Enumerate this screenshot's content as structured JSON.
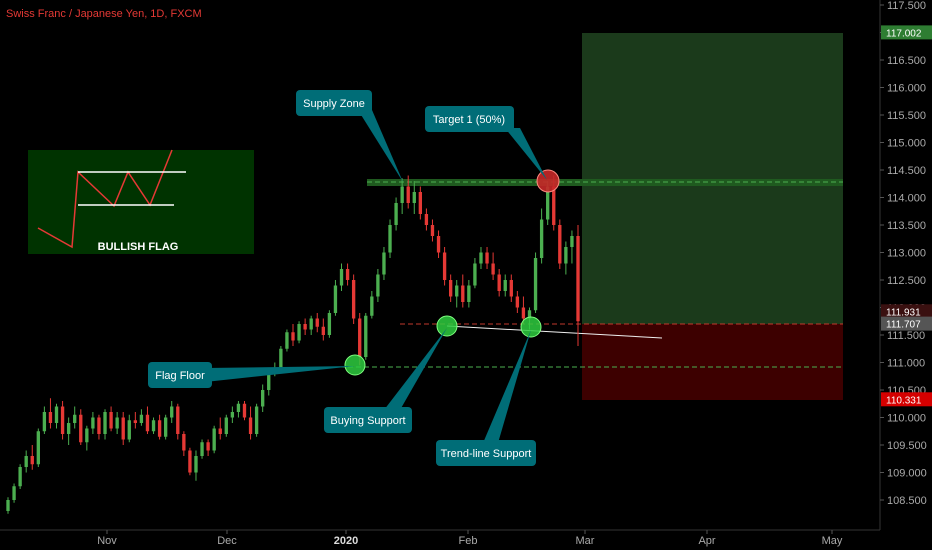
{
  "header": {
    "title": "Swiss Franc / Japanese Yen, 1D, FXCM"
  },
  "colors": {
    "background": "#000000",
    "bull": "#4caf50",
    "bear": "#e53935",
    "supply_line": "#2e7d32",
    "target_zone": "#1b3a1b",
    "stop_zone": "#3d0000",
    "callout": "#006d77",
    "marker_green": "#2ecc40",
    "marker_red": "#c62828"
  },
  "chart_data": {
    "type": "candlestick",
    "title": "Swiss Franc / Japanese Yen, 1D, FXCM",
    "x_ticks": [
      "Nov",
      "Dec",
      "2020",
      "Feb",
      "Mar",
      "Apr",
      "May"
    ],
    "y_ticks": [
      "117.500",
      "117.000",
      "116.500",
      "116.000",
      "115.500",
      "115.000",
      "114.500",
      "114.000",
      "113.500",
      "113.000",
      "112.500",
      "112.000",
      "111.500",
      "111.000",
      "110.500",
      "110.000",
      "109.500",
      "109.000",
      "108.500"
    ],
    "ylim": [
      108.1,
      117.6
    ],
    "price_labels": [
      {
        "value": 117.002,
        "text": "117.002",
        "color": "#2e7d32"
      },
      {
        "value": 111.931,
        "text": "111.931",
        "color": "#3a1010"
      },
      {
        "value": 111.707,
        "text": "111.707",
        "color": "#555555"
      },
      {
        "value": 110.331,
        "text": "110.331",
        "color": "#d50000"
      }
    ],
    "levels": {
      "supply_zone": 114.33,
      "buying_support": 111.92,
      "flag_floor": 110.95,
      "target_top": 117.002,
      "stop": 110.331,
      "entry": 111.931
    },
    "candles": [
      [
        108.3,
        108.55,
        108.25,
        108.5
      ],
      [
        108.5,
        108.8,
        108.45,
        108.75
      ],
      [
        108.75,
        109.15,
        108.7,
        109.1
      ],
      [
        109.1,
        109.4,
        109.0,
        109.3
      ],
      [
        109.3,
        109.5,
        109.05,
        109.15
      ],
      [
        109.15,
        109.8,
        109.1,
        109.75
      ],
      [
        109.75,
        110.2,
        109.7,
        110.1
      ],
      [
        110.1,
        110.35,
        109.8,
        109.9
      ],
      [
        109.9,
        110.25,
        109.8,
        110.2
      ],
      [
        110.2,
        110.3,
        109.6,
        109.7
      ],
      [
        109.7,
        110.0,
        109.5,
        109.9
      ],
      [
        109.9,
        110.2,
        109.8,
        110.05
      ],
      [
        110.05,
        110.15,
        109.5,
        109.55
      ],
      [
        109.55,
        109.85,
        109.4,
        109.8
      ],
      [
        109.8,
        110.1,
        109.7,
        110.0
      ],
      [
        110.0,
        110.05,
        109.6,
        109.7
      ],
      [
        109.7,
        110.15,
        109.6,
        110.1
      ],
      [
        110.1,
        110.2,
        109.75,
        109.8
      ],
      [
        109.8,
        110.1,
        109.7,
        110.0
      ],
      [
        110.0,
        110.1,
        109.5,
        109.6
      ],
      [
        109.6,
        110.05,
        109.55,
        109.95
      ],
      [
        109.95,
        110.1,
        109.8,
        109.9
      ],
      [
        109.9,
        110.15,
        109.85,
        110.05
      ],
      [
        110.05,
        110.2,
        109.7,
        109.75
      ],
      [
        109.75,
        110.0,
        109.7,
        109.95
      ],
      [
        109.95,
        110.05,
        109.6,
        109.65
      ],
      [
        109.65,
        110.05,
        109.6,
        110.0
      ],
      [
        110.0,
        110.3,
        109.9,
        110.2
      ],
      [
        110.2,
        110.25,
        109.6,
        109.7
      ],
      [
        109.7,
        109.75,
        109.3,
        109.4
      ],
      [
        109.4,
        109.45,
        108.95,
        109.0
      ],
      [
        109.0,
        109.4,
        108.85,
        109.3
      ],
      [
        109.3,
        109.6,
        109.25,
        109.55
      ],
      [
        109.55,
        109.6,
        109.3,
        109.4
      ],
      [
        109.4,
        109.85,
        109.35,
        109.8
      ],
      [
        109.8,
        110.0,
        109.6,
        109.7
      ],
      [
        109.7,
        110.05,
        109.65,
        110.0
      ],
      [
        110.0,
        110.2,
        109.9,
        110.1
      ],
      [
        110.1,
        110.3,
        110.0,
        110.25
      ],
      [
        110.25,
        110.3,
        109.95,
        110.0
      ],
      [
        110.0,
        110.2,
        109.6,
        109.7
      ],
      [
        109.7,
        110.25,
        109.65,
        110.2
      ],
      [
        110.2,
        110.6,
        110.1,
        110.5
      ],
      [
        110.5,
        110.9,
        110.4,
        110.85
      ],
      [
        110.85,
        111.0,
        110.75,
        110.9
      ],
      [
        110.9,
        111.3,
        110.85,
        111.25
      ],
      [
        111.25,
        111.6,
        111.2,
        111.55
      ],
      [
        111.55,
        111.7,
        111.3,
        111.4
      ],
      [
        111.4,
        111.75,
        111.35,
        111.7
      ],
      [
        111.7,
        111.8,
        111.5,
        111.6
      ],
      [
        111.6,
        111.85,
        111.5,
        111.8
      ],
      [
        111.8,
        111.9,
        111.55,
        111.65
      ],
      [
        111.65,
        111.8,
        111.4,
        111.5
      ],
      [
        111.5,
        111.95,
        111.45,
        111.9
      ],
      [
        111.9,
        112.5,
        111.85,
        112.4
      ],
      [
        112.4,
        112.8,
        112.3,
        112.7
      ],
      [
        112.7,
        112.8,
        112.4,
        112.5
      ],
      [
        112.5,
        112.6,
        111.7,
        111.8
      ],
      [
        111.8,
        111.9,
        110.95,
        111.1
      ],
      [
        111.1,
        111.9,
        111.05,
        111.85
      ],
      [
        111.85,
        112.3,
        111.8,
        112.2
      ],
      [
        112.2,
        112.7,
        112.1,
        112.6
      ],
      [
        112.6,
        113.1,
        112.5,
        113.0
      ],
      [
        113.0,
        113.6,
        112.9,
        113.5
      ],
      [
        113.5,
        114.0,
        113.4,
        113.9
      ],
      [
        113.9,
        114.35,
        113.7,
        114.2
      ],
      [
        114.2,
        114.4,
        113.8,
        113.9
      ],
      [
        113.9,
        114.3,
        113.7,
        114.1
      ],
      [
        114.1,
        114.2,
        113.6,
        113.7
      ],
      [
        113.7,
        113.8,
        113.4,
        113.5
      ],
      [
        113.5,
        113.6,
        113.2,
        113.3
      ],
      [
        113.3,
        113.4,
        112.9,
        113.0
      ],
      [
        113.0,
        113.1,
        112.4,
        112.5
      ],
      [
        112.5,
        112.6,
        112.1,
        112.2
      ],
      [
        112.2,
        112.5,
        112.0,
        112.4
      ],
      [
        112.4,
        112.6,
        112.0,
        112.1
      ],
      [
        112.1,
        112.5,
        112.0,
        112.4
      ],
      [
        112.4,
        112.9,
        112.35,
        112.8
      ],
      [
        112.8,
        113.1,
        112.7,
        113.0
      ],
      [
        113.0,
        113.1,
        112.7,
        112.8
      ],
      [
        112.8,
        113.0,
        112.5,
        112.6
      ],
      [
        112.6,
        112.7,
        112.2,
        112.3
      ],
      [
        112.3,
        112.6,
        112.2,
        112.5
      ],
      [
        112.5,
        112.6,
        112.1,
        112.2
      ],
      [
        112.2,
        112.3,
        111.9,
        112.0
      ],
      [
        112.0,
        112.2,
        111.7,
        111.8
      ],
      [
        111.8,
        112.0,
        111.6,
        111.95
      ],
      [
        111.95,
        113.0,
        111.9,
        112.9
      ],
      [
        112.9,
        113.8,
        112.8,
        113.6
      ],
      [
        113.6,
        114.3,
        113.5,
        114.2
      ],
      [
        114.2,
        114.4,
        113.4,
        113.5
      ],
      [
        113.5,
        113.6,
        112.7,
        112.8
      ],
      [
        112.8,
        113.2,
        112.6,
        113.1
      ],
      [
        113.1,
        113.4,
        112.8,
        113.3
      ],
      [
        113.3,
        113.5,
        111.3,
        111.75
      ]
    ],
    "annotations": [
      "Supply Zone",
      "Target 1 (50%)",
      "Flag Floor",
      "Buying Support",
      "Trend-line Support"
    ],
    "inset": {
      "label": "BULLISH FLAG"
    }
  },
  "callouts": {
    "supply_zone": "Supply Zone",
    "target1": "Target 1 (50%)",
    "flag_floor": "Flag Floor",
    "buying_support": "Buying Support",
    "trendline_support": "Trend-line Support"
  },
  "inset": {
    "label": "BULLISH FLAG"
  }
}
